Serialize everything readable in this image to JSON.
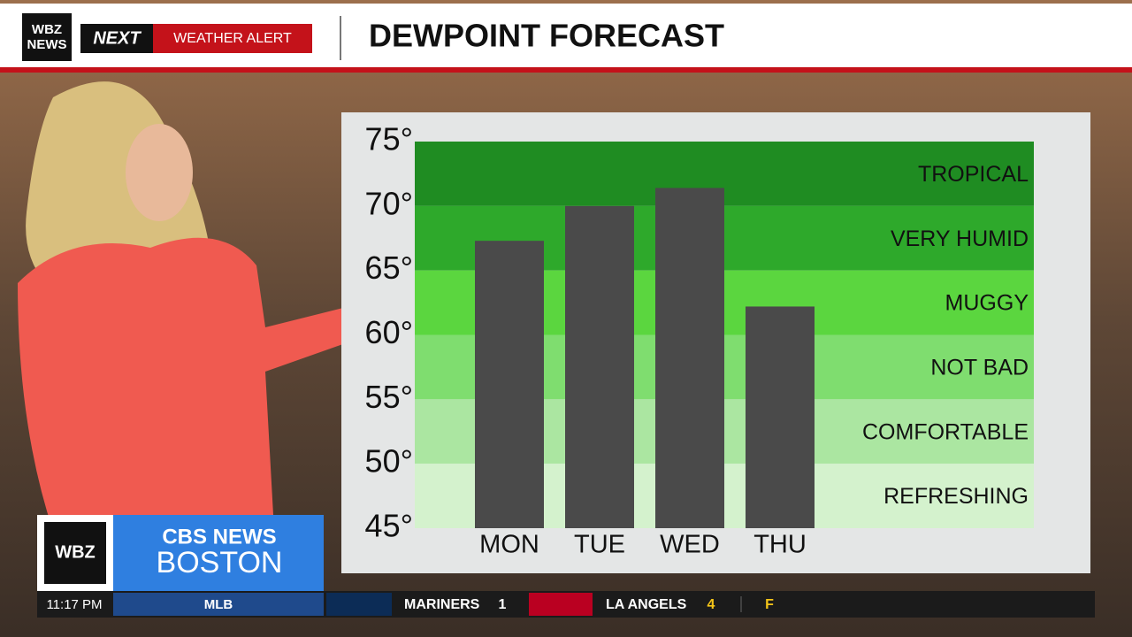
{
  "broadcast": {
    "station_logo": [
      "WBZ",
      "NEWS"
    ],
    "alert_next": "NEXT",
    "alert_text": "WEATHER ALERT",
    "corner_logo": "WBZ",
    "network": "CBS NEWS",
    "city": "BOSTON",
    "ticker": {
      "time": "11:17 PM",
      "league": "MLB",
      "team1": "MARINERS",
      "score1": 1,
      "team2": "LA ANGELS",
      "score2": 4,
      "status": "F"
    }
  },
  "chart_data": {
    "type": "bar",
    "title": "DEWPOINT FORECAST",
    "categories": [
      "MON",
      "TUE",
      "WED",
      "THU"
    ],
    "values": [
      67.3,
      70,
      71.4,
      62.2
    ],
    "color": "#4a4a4a",
    "ylim": [
      45,
      75
    ],
    "yticks": [
      {
        "value": 45,
        "label": "45°"
      },
      {
        "value": 50,
        "label": "50°"
      },
      {
        "value": 55,
        "label": "55°"
      },
      {
        "value": 60,
        "label": "60°"
      },
      {
        "value": 65,
        "label": "65°"
      },
      {
        "value": 70,
        "label": "70°"
      },
      {
        "value": 75,
        "label": "75°"
      }
    ],
    "bands": [
      {
        "label": "TROPICAL",
        "from": 70,
        "to": 75,
        "color": "#1f8c22"
      },
      {
        "label": "VERY HUMID",
        "from": 65,
        "to": 70,
        "color": "#2ea92b"
      },
      {
        "label": "MUGGY",
        "from": 60,
        "to": 65,
        "color": "#5bd63f"
      },
      {
        "label": "NOT BAD",
        "from": 55,
        "to": 60,
        "color": "#7fdd6f"
      },
      {
        "label": "COMFORTABLE",
        "from": 50,
        "to": 55,
        "color": "#abe6a1"
      },
      {
        "label": "REFRESHING",
        "from": 45,
        "to": 50,
        "color": "#d4f2cd"
      }
    ]
  }
}
